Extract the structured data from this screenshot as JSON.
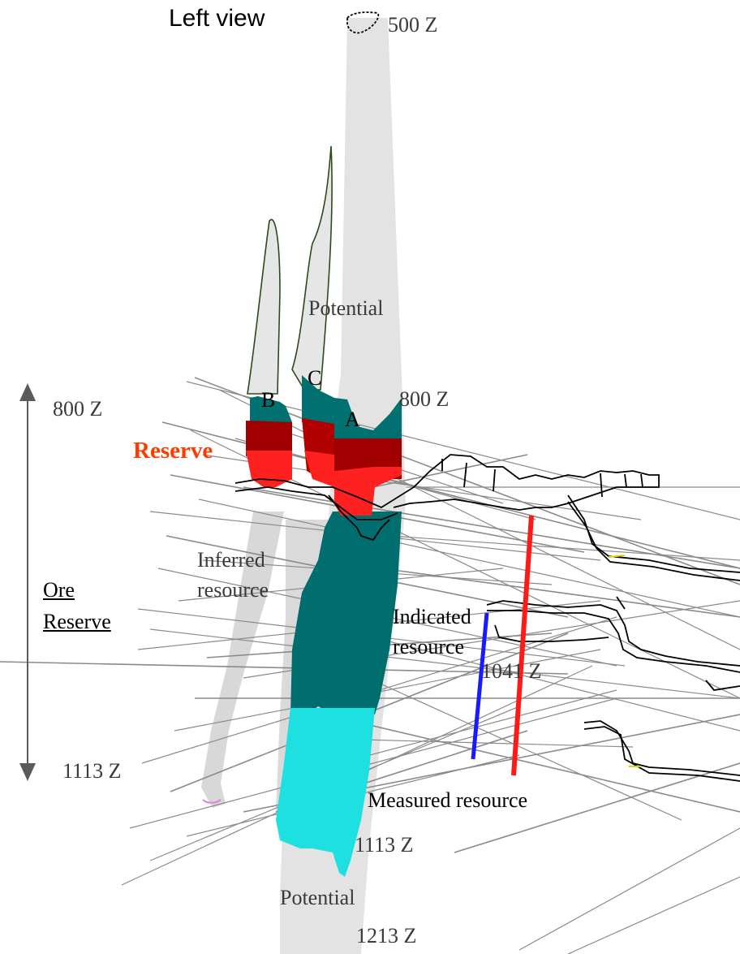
{
  "view_title": "Left view",
  "levels": {
    "top": "500 Z",
    "upper_left": "800 Z",
    "upper_center": "800 Z",
    "mid": "1041 Z",
    "lower_left": "1113 Z",
    "lower_center": "1113 Z",
    "bottom": "1213 Z"
  },
  "zones": {
    "b": "B",
    "c": "C",
    "a": "A"
  },
  "labels": {
    "potential_upper": "Potential",
    "potential_lower": "Potential",
    "reserve": "Reserve",
    "inferred_line1": "Inferred",
    "inferred_line2": "resource",
    "indicated_line1": "Indicated",
    "indicated_line2": "resource",
    "measured": "Measured resource",
    "ore_line1": "Ore",
    "ore_line2": "Reserve"
  },
  "colors": {
    "potential": "#e3e3e3",
    "inferred": "#d8d8d8",
    "indicated": "#006e6e",
    "measured": "#1ee0e0",
    "reserve_light": "#ff2020",
    "reserve_dark": "#a00000",
    "drillhole": "#8a8a8a",
    "workings": "#000000",
    "hole_red": "#ff1a1a",
    "hole_blue": "#1a1aff",
    "outline": "#2e4a14",
    "arrow": "#5a5a5a"
  }
}
